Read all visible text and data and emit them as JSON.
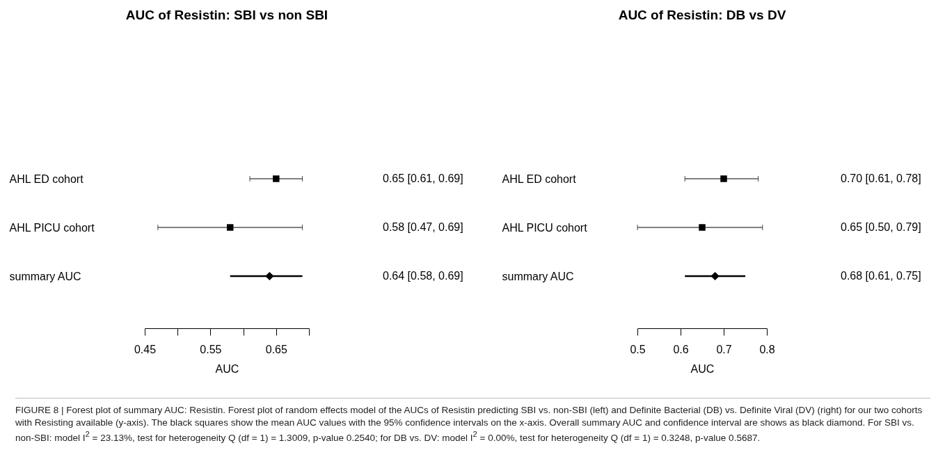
{
  "chart_data": [
    {
      "type": "scatter",
      "orientation": "horizontal",
      "title": "AUC of Resistin: SBI vs non SBI",
      "xlabel": "AUC",
      "categories": [
        "AHL ED cohort",
        "AHL PICU cohort",
        "summary AUC"
      ],
      "series": [
        {
          "marker": "square",
          "color": "#000000",
          "values": [
            0.65,
            0.58,
            null
          ],
          "errors": [
            [
              0.61,
              0.69
            ],
            [
              0.47,
              0.69
            ],
            null
          ]
        },
        {
          "marker": "diamond",
          "color": "#000000",
          "values": [
            null,
            null,
            0.64
          ],
          "errors": [
            null,
            null,
            [
              0.58,
              0.69
            ]
          ]
        }
      ],
      "value_labels": [
        "0.65 [0.61, 0.69]",
        "0.58 [0.47, 0.69]",
        "0.64 [0.58, 0.69]"
      ],
      "xlim": [
        0.45,
        0.7
      ],
      "xticks": [
        0.45,
        {
          "value": 0.5,
          "label": null
        },
        0.55,
        {
          "value": 0.6,
          "label": null
        },
        0.65,
        {
          "value": 0.7,
          "label": null
        }
      ],
      "grid": false,
      "annotations": [
        "FIGURE 8 | Forest plot of summary AUC: Resistin. Forest plot of random effects model of the AUCs of Resistin predicting SBI vs. non-SBI (left) and Definite Bacterial (DB) vs. Definite Viral (DV) (right) for our two cohorts with Resisting available (y-axis). The black squares show the mean AUC values with the 95% confidence intervals on the x-axis. Overall summary AUC and confidence interval are shows as black diamond. For SBI vs. non-SBI: model I$^{2}$ = 23.13%, test for heterogeneity Q (df = 1) = 1.3009, p-value 0.2540; for DB vs. DV: model I$^{2}$ = 0.00%, test for heterogeneity Q (df = 1) = 0.3248, p-value 0.5687."
      ]
    },
    {
      "type": "scatter",
      "orientation": "horizontal",
      "title": "AUC of Resistin: DB vs DV",
      "xlabel": "AUC",
      "categories": [
        "AHL ED cohort",
        "AHL PICU cohort",
        "summary AUC"
      ],
      "series": [
        {
          "marker": "square",
          "color": "#000000",
          "values": [
            0.7,
            0.65,
            null
          ],
          "errors": [
            [
              0.61,
              0.78
            ],
            [
              0.5,
              0.79
            ],
            null
          ]
        },
        {
          "marker": "diamond",
          "color": "#000000",
          "values": [
            null,
            null,
            0.68
          ],
          "errors": [
            null,
            null,
            [
              0.61,
              0.75
            ]
          ]
        }
      ],
      "value_labels": [
        "0.70 [0.61, 0.78]",
        "0.65 [0.50, 0.79]",
        "0.68 [0.61, 0.75]"
      ],
      "xlim": [
        0.5,
        0.8
      ],
      "xticks": [
        0.5,
        0.6,
        0.7,
        0.8
      ],
      "grid": false
    }
  ]
}
